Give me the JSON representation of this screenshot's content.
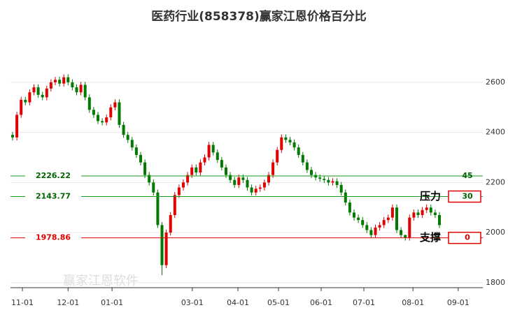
{
  "chart_data": {
    "type": "candlestick",
    "title": "医药行业(858378)赢家江恩价格百分比",
    "up_color": "#e00000",
    "down_color": "#007a00",
    "xlim": [
      0,
      110
    ],
    "ylim": [
      1780,
      2700
    ],
    "yticks": [
      1800,
      2000,
      2200,
      2400,
      2600
    ],
    "grid": true,
    "xticks": [
      {
        "value": 2.3,
        "label": "11-01"
      },
      {
        "value": 13,
        "label": "12-01"
      },
      {
        "value": 23.3,
        "label": "01-01"
      },
      {
        "value": 42.1,
        "label": "03-01"
      },
      {
        "value": 52.8,
        "label": "04-01"
      },
      {
        "value": 62.3,
        "label": "05-01"
      },
      {
        "value": 72.3,
        "label": "06-01"
      },
      {
        "value": 82.3,
        "label": "07-01"
      },
      {
        "value": 93.8,
        "label": "08-01"
      },
      {
        "value": 104.4,
        "label": "09-01"
      }
    ],
    "open": [
      2390,
      2380,
      2470,
      2530,
      2520,
      2560,
      2580,
      2550,
      2540,
      2575,
      2600,
      2610,
      2595,
      2620,
      2600,
      2580,
      2560,
      2590,
      2540,
      2490,
      2470,
      2445,
      2440,
      2460,
      2500,
      2520,
      2430,
      2390,
      2370,
      2340,
      2310,
      2280,
      2230,
      2200,
      2160,
      2030,
      1870,
      2000,
      2070,
      2150,
      2180,
      2200,
      2230,
      2260,
      2240,
      2280,
      2300,
      2350,
      2320,
      2290,
      2260,
      2230,
      2210,
      2190,
      2220,
      2210,
      2180,
      2160,
      2175,
      2180,
      2200,
      2230,
      2280,
      2330,
      2380,
      2370,
      2360,
      2340,
      2310,
      2280,
      2250,
      2230,
      2220,
      2215,
      2210,
      2200,
      2205,
      2190,
      2160,
      2120,
      2080,
      2060,
      2050,
      2030,
      2010,
      1990,
      2020,
      2030,
      2050,
      2060,
      2100,
      2010,
      1990,
      1980,
      2060,
      2080,
      2070,
      2090,
      2100,
      2080,
      2070
    ],
    "high": [
      2402,
      2482,
      2542,
      2542,
      2572,
      2592,
      2592,
      2562,
      2587,
      2612,
      2622,
      2622,
      2632,
      2632,
      2612,
      2592,
      2602,
      2602,
      2552,
      2502,
      2482,
      2457,
      2472,
      2512,
      2532,
      2532,
      2442,
      2402,
      2382,
      2352,
      2322,
      2292,
      2242,
      2212,
      2172,
      2042,
      2012,
      2082,
      2162,
      2192,
      2212,
      2242,
      2272,
      2272,
      2292,
      2312,
      2362,
      2362,
      2332,
      2302,
      2272,
      2242,
      2222,
      2232,
      2232,
      2222,
      2192,
      2187,
      2192,
      2212,
      2242,
      2292,
      2342,
      2392,
      2392,
      2382,
      2372,
      2352,
      2322,
      2292,
      2262,
      2242,
      2232,
      2227,
      2222,
      2217,
      2217,
      2202,
      2172,
      2132,
      2092,
      2072,
      2062,
      2042,
      2022,
      2032,
      2042,
      2062,
      2072,
      2112,
      2112,
      2022,
      1992,
      2072,
      2092,
      2092,
      2102,
      2112,
      2112,
      2092,
      2082
    ],
    "low": [
      2368,
      2368,
      2458,
      2508,
      2508,
      2548,
      2538,
      2528,
      2528,
      2563,
      2588,
      2583,
      2583,
      2588,
      2568,
      2548,
      2548,
      2528,
      2478,
      2458,
      2433,
      2428,
      2428,
      2448,
      2488,
      2418,
      2378,
      2358,
      2328,
      2298,
      2268,
      2218,
      2188,
      2148,
      2018,
      1830,
      1858,
      1988,
      2058,
      2138,
      2168,
      2188,
      2218,
      2228,
      2228,
      2268,
      2288,
      2308,
      2278,
      2248,
      2218,
      2198,
      2178,
      2178,
      2198,
      2168,
      2148,
      2148,
      2163,
      2168,
      2188,
      2218,
      2268,
      2318,
      2358,
      2348,
      2328,
      2298,
      2268,
      2238,
      2218,
      2208,
      2203,
      2198,
      2188,
      2188,
      2178,
      2148,
      2108,
      2068,
      2048,
      2038,
      2018,
      1998,
      1978,
      1978,
      2008,
      2018,
      2038,
      2048,
      1998,
      1978,
      1968,
      1968,
      2048,
      2058,
      2058,
      2078,
      2068,
      2058,
      2018
    ],
    "close": [
      2380,
      2470,
      2530,
      2520,
      2560,
      2580,
      2550,
      2540,
      2575,
      2600,
      2610,
      2595,
      2620,
      2600,
      2580,
      2560,
      2590,
      2540,
      2490,
      2470,
      2445,
      2440,
      2460,
      2500,
      2520,
      2430,
      2390,
      2370,
      2340,
      2310,
      2280,
      2230,
      2200,
      2160,
      2030,
      1870,
      2000,
      2070,
      2150,
      2180,
      2200,
      2230,
      2260,
      2240,
      2280,
      2300,
      2350,
      2320,
      2290,
      2260,
      2230,
      2210,
      2190,
      2220,
      2210,
      2180,
      2160,
      2175,
      2180,
      2200,
      2230,
      2280,
      2330,
      2380,
      2370,
      2360,
      2340,
      2310,
      2280,
      2250,
      2230,
      2220,
      2215,
      2210,
      2200,
      2205,
      2190,
      2160,
      2120,
      2080,
      2060,
      2050,
      2030,
      2010,
      1990,
      2020,
      2030,
      2050,
      2060,
      2100,
      2010,
      1990,
      1980,
      2060,
      2080,
      2070,
      2090,
      2100,
      2080,
      2070,
      2030
    ],
    "levels": [
      {
        "value": 2226.22,
        "percent": 45,
        "color": "#1a9a1a",
        "label_color": "#006400",
        "boxed": false
      },
      {
        "value": 2143.77,
        "percent": 30,
        "color": "#1a9a1a",
        "label_color": "#006400",
        "boxed": true
      },
      {
        "value": 1978.86,
        "percent": 0,
        "color": "#e00000",
        "label_color": "#e00000",
        "boxed": true
      }
    ],
    "annotations": [
      {
        "text": "压力",
        "level": 1
      },
      {
        "text": "支撑",
        "level": 2
      }
    ],
    "watermark": "赢家江恩软件"
  }
}
